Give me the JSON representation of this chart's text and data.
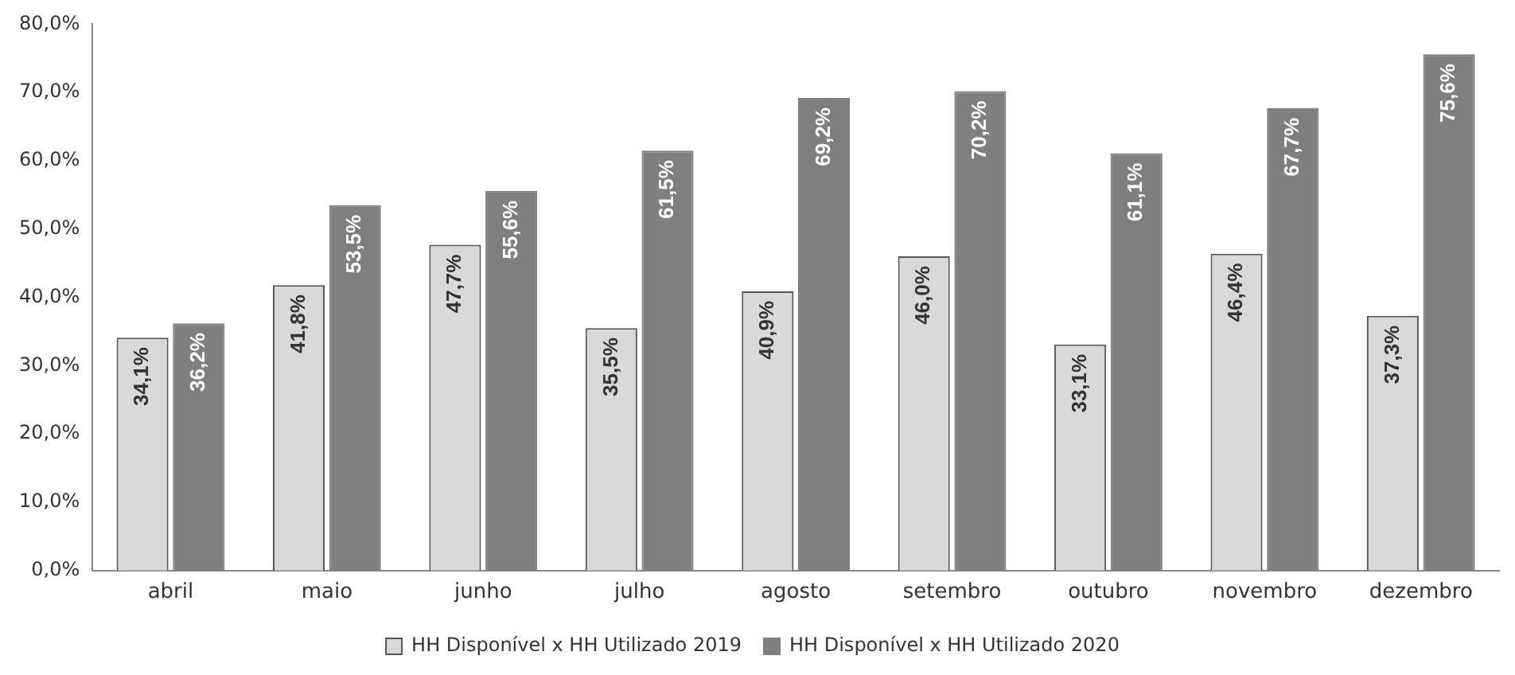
{
  "chart_data": {
    "type": "bar",
    "categories": [
      "abril",
      "maio",
      "junho",
      "julho",
      "agosto",
      "setembro",
      "outubro",
      "novembro",
      "dezembro"
    ],
    "series": [
      {
        "name": "HH Disponível x HH Utilizado 2019",
        "color": "#d9d9d9",
        "values": [
          34.1,
          41.8,
          47.7,
          35.5,
          40.9,
          46.0,
          33.1,
          46.4,
          37.3
        ],
        "value_labels": [
          "34,1%",
          "41,8%",
          "47,7%",
          "35,5%",
          "40,9%",
          "46,0%",
          "33,1%",
          "46,4%",
          "37,3%"
        ]
      },
      {
        "name": "HH Disponível x HH Utilizado 2020",
        "color": "#7f7f7f",
        "values": [
          36.2,
          53.5,
          55.6,
          61.5,
          69.2,
          70.2,
          61.1,
          67.7,
          75.6
        ],
        "value_labels": [
          "36,2%",
          "53,5%",
          "55,6%",
          "61,5%",
          "69,2%",
          "70,2%",
          "61,1%",
          "67,7%",
          "75,6%"
        ]
      }
    ],
    "ylim": [
      0,
      80
    ],
    "yticks": [
      {
        "value": 0,
        "label": "0,0%"
      },
      {
        "value": 10,
        "label": "10,0%"
      },
      {
        "value": 20,
        "label": "20,0%"
      },
      {
        "value": 30,
        "label": "30,0%"
      },
      {
        "value": 40,
        "label": "40,0%"
      },
      {
        "value": 50,
        "label": "50,0%"
      },
      {
        "value": 60,
        "label": "60,0%"
      },
      {
        "value": 70,
        "label": "70,0%"
      },
      {
        "value": 80,
        "label": "80,0%"
      }
    ],
    "grid": false,
    "legend": "bottom"
  }
}
